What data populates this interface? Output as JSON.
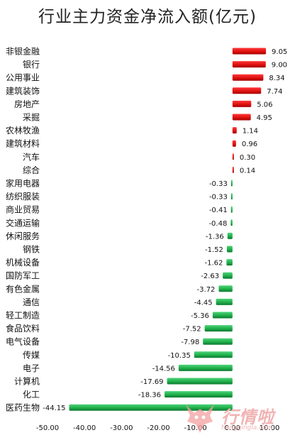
{
  "chart_data": {
    "type": "bar",
    "orientation": "horizontal",
    "title": "行业主力资金净流入额(亿元)",
    "categories": [
      "非银金融",
      "银行",
      "公用事业",
      "建筑装饰",
      "房地产",
      "采掘",
      "农林牧渔",
      "建筑材料",
      "汽车",
      "综合",
      "家用电器",
      "纺织服装",
      "商业贸易",
      "交通运输",
      "休闲服务",
      "钢铁",
      "机械设备",
      "国防军工",
      "有色金属",
      "通信",
      "轻工制造",
      "食品饮料",
      "电气设备",
      "传媒",
      "电子",
      "计算机",
      "化工",
      "医药生物"
    ],
    "values": [
      9.05,
      9.0,
      8.34,
      7.74,
      5.06,
      4.95,
      1.14,
      0.96,
      0.3,
      0.14,
      -0.33,
      -0.33,
      -0.41,
      -0.48,
      -1.36,
      -1.52,
      -1.62,
      -2.63,
      -3.72,
      -4.45,
      -5.36,
      -7.52,
      -7.98,
      -10.35,
      -14.56,
      -17.69,
      -18.36,
      -44.15
    ],
    "value_labels": [
      "9.05",
      "9.00",
      "8.34",
      "7.74",
      "5.06",
      "4.95",
      "1.14",
      "0.96",
      "0.30",
      "0.14",
      "-0.33",
      "-0.33",
      "-0.41",
      "-0.48",
      "-1.36",
      "-1.52",
      "-1.62",
      "-2.63",
      "-3.72",
      "-4.45",
      "-5.36",
      "-7.52",
      "-7.98",
      "-10.35",
      "-14.56",
      "-17.69",
      "-18.36",
      "-44.15"
    ],
    "xlim": [
      -50,
      10
    ],
    "xticks": [
      "-50.00",
      "-40.00",
      "-30.00",
      "-20.00",
      "-10.00",
      "0.00",
      "10.00"
    ],
    "grid": false,
    "colors": {
      "positive": "#e01010",
      "positive_dark": "#a50000",
      "negative": "#1fae4a",
      "negative_dark": "#0d7a30"
    }
  },
  "watermark": {
    "brand": "行情啦",
    "url": "hangqingla.com"
  }
}
